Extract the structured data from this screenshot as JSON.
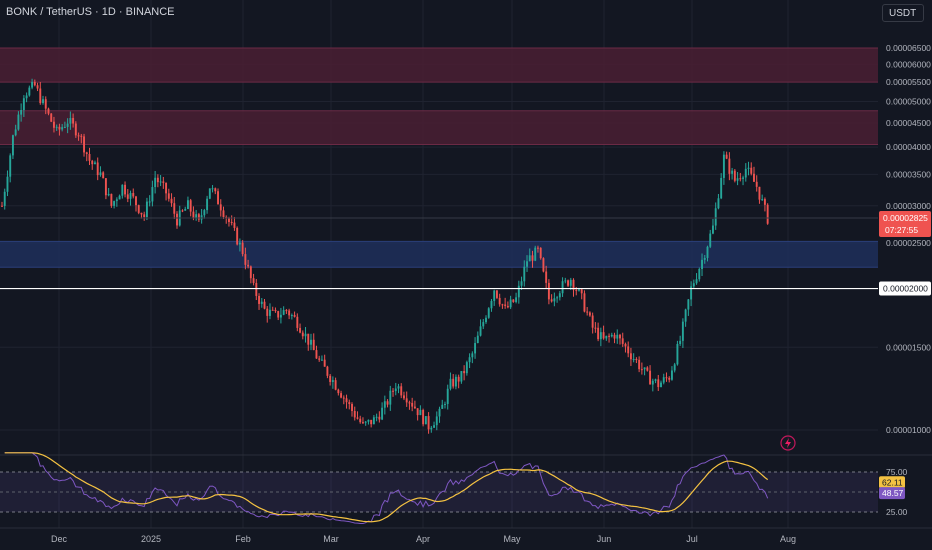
{
  "header": {
    "symbol_title": "BONK / TetherUS · 1D · BINANCE",
    "currency_button": "USDT"
  },
  "colors": {
    "background": "#131722",
    "up": "#26a69a",
    "down": "#ef5350",
    "resistance_zone": "#4a1f33",
    "support_zone": "#1e2f5a",
    "rsi_line": "#7e57c2",
    "rsi_ma": "#f4c242"
  },
  "chart_data": {
    "type": "candlestick",
    "symbol": "BONK / TetherUS",
    "interval": "1D",
    "exchange": "BINANCE",
    "y_axis": {
      "ticks": [
        "0.00006500",
        "0.00006000",
        "0.00005500",
        "0.00005000",
        "0.00004500",
        "0.00004000",
        "0.00003500",
        "0.00003000",
        "0.00002500",
        "0.00002000",
        "0.00001500",
        "0.00001000"
      ],
      "scale": "log"
    },
    "x_axis": {
      "ticks": [
        "Dec",
        "2025",
        "Feb",
        "Mar",
        "Apr",
        "May",
        "Jun",
        "Jul",
        "Aug"
      ]
    },
    "current_price": "0.00002825",
    "countdown": "07:27:55",
    "horizontal_level": "0.00002000",
    "zones": [
      {
        "kind": "resistance",
        "from": 5.5e-05,
        "to": 6.5e-05
      },
      {
        "kind": "resistance",
        "from": 4.05e-05,
        "to": 4.78e-05
      },
      {
        "kind": "support",
        "from": 2.22e-05,
        "to": 2.52e-05
      }
    ],
    "price_path_daily_close": [
      [
        0,
        3e-05
      ],
      [
        4,
        4.2e-05
      ],
      [
        8,
        5.2e-05
      ],
      [
        12,
        5.4e-05
      ],
      [
        16,
        4.8e-05
      ],
      [
        20,
        4.3e-05
      ],
      [
        24,
        4.55e-05
      ],
      [
        28,
        4.3e-05
      ],
      [
        32,
        3.75e-05
      ],
      [
        36,
        3.5e-05
      ],
      [
        40,
        3e-05
      ],
      [
        44,
        3.3e-05
      ],
      [
        48,
        3.1e-05
      ],
      [
        52,
        2.85e-05
      ],
      [
        56,
        3.45e-05
      ],
      [
        60,
        3.2e-05
      ],
      [
        64,
        2.8e-05
      ],
      [
        68,
        3e-05
      ],
      [
        72,
        2.75e-05
      ],
      [
        76,
        3.3e-05
      ],
      [
        80,
        3e-05
      ],
      [
        84,
        2.7e-05
      ],
      [
        88,
        2.4e-05
      ],
      [
        92,
        2e-05
      ],
      [
        96,
        1.8e-05
      ],
      [
        100,
        1.75e-05
      ],
      [
        104,
        1.8e-05
      ],
      [
        108,
        1.7e-05
      ],
      [
        112,
        1.55e-05
      ],
      [
        116,
        1.4e-05
      ],
      [
        120,
        1.3e-05
      ],
      [
        124,
        1.2e-05
      ],
      [
        128,
        1.1e-05
      ],
      [
        132,
        1.02e-05
      ],
      [
        136,
        1.05e-05
      ],
      [
        140,
        1.12e-05
      ],
      [
        144,
        1.25e-05
      ],
      [
        148,
        1.18e-05
      ],
      [
        152,
        1.1e-05
      ],
      [
        156,
        1.02e-05
      ],
      [
        160,
        1.08e-05
      ],
      [
        164,
        1.25e-05
      ],
      [
        168,
        1.3e-05
      ],
      [
        172,
        1.45e-05
      ],
      [
        176,
        1.7e-05
      ],
      [
        180,
        2e-05
      ],
      [
        184,
        1.8e-05
      ],
      [
        188,
        1.9e-05
      ],
      [
        192,
        2.3e-05
      ],
      [
        196,
        2.4e-05
      ],
      [
        200,
        1.9e-05
      ],
      [
        204,
        2e-05
      ],
      [
        208,
        2.1e-05
      ],
      [
        212,
        1.9e-05
      ],
      [
        216,
        1.65e-05
      ],
      [
        220,
        1.55e-05
      ],
      [
        224,
        1.6e-05
      ],
      [
        228,
        1.5e-05
      ],
      [
        232,
        1.4e-05
      ],
      [
        236,
        1.3e-05
      ],
      [
        240,
        1.25e-05
      ],
      [
        244,
        1.3e-05
      ],
      [
        248,
        1.55e-05
      ],
      [
        252,
        2e-05
      ],
      [
        256,
        2.3e-05
      ],
      [
        260,
        2.7e-05
      ],
      [
        264,
        3.8e-05
      ],
      [
        268,
        3.4e-05
      ],
      [
        272,
        3.6e-05
      ],
      [
        276,
        3.3e-05
      ],
      [
        280,
        2.82e-05
      ]
    ],
    "rsi": {
      "levels": {
        "upper": 75.0,
        "lower": 25.0
      },
      "value": 48.57,
      "ma_value": 62.11,
      "ticks": [
        "75.00",
        "25.00"
      ]
    }
  }
}
